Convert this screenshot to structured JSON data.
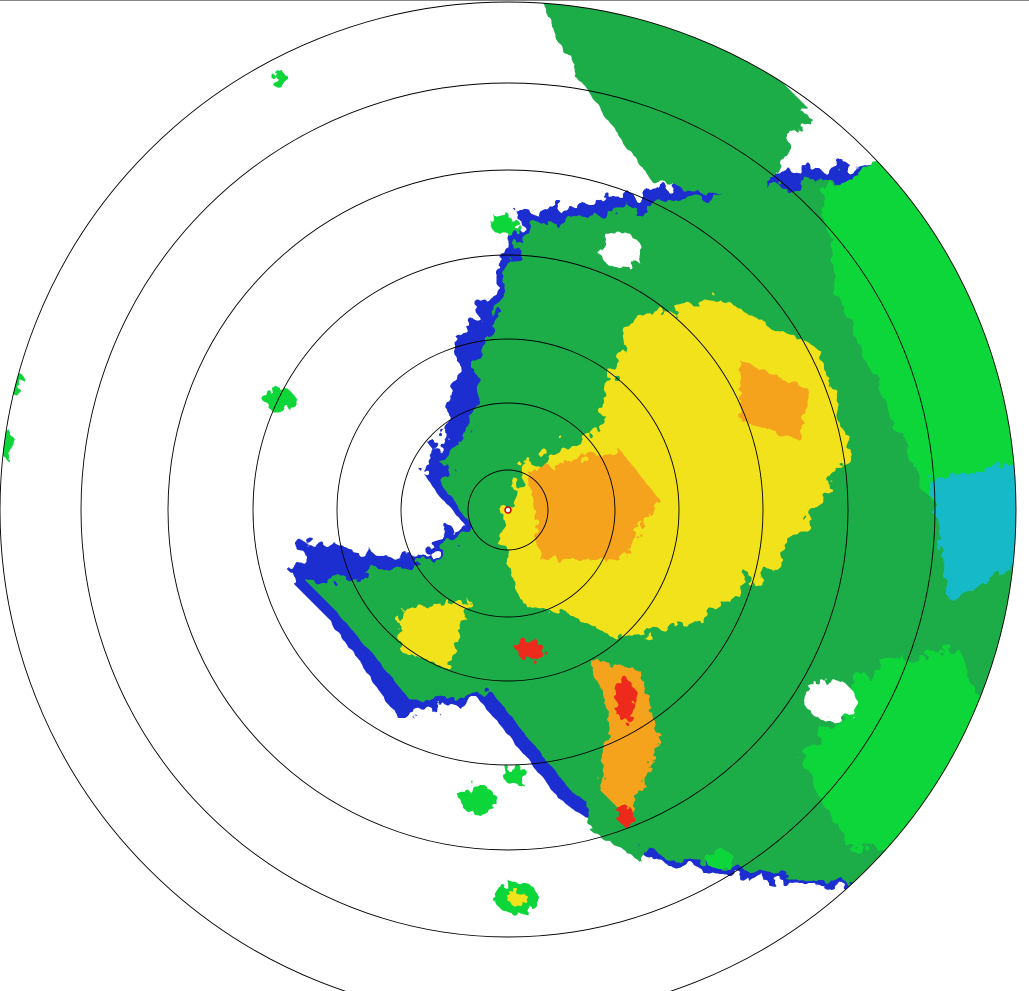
{
  "radar": {
    "palette": {
      "very_light": "#1a2fd0",
      "light": "#18b9c8",
      "light_moderate": "#11d63a",
      "moderate": "#1fad4a",
      "moderate_heavy": "#f2e21a",
      "heavy": "#f5a21a",
      "very_heavy": "#ee2a1a"
    },
    "range_ring_color": "#000000",
    "range_ring_count": 7,
    "show_range_rings": true
  }
}
